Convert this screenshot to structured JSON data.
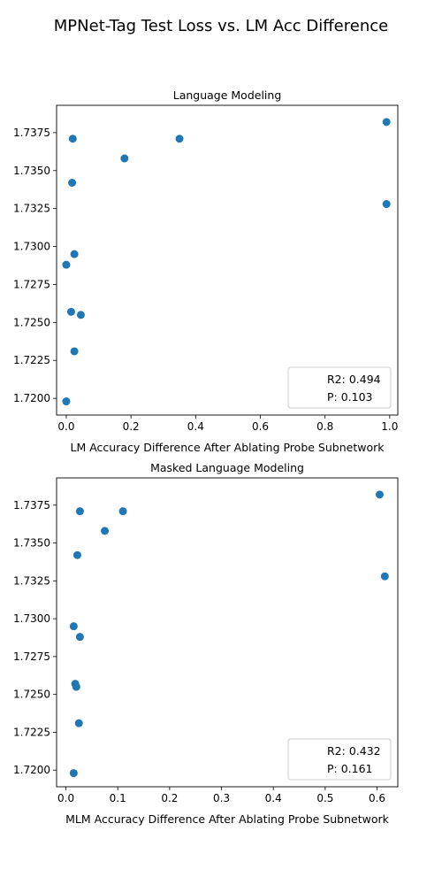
{
  "figure": {
    "suptitle": "MPNet-Tag Test Loss vs. LM Acc Difference"
  },
  "chart_data": [
    {
      "type": "scatter",
      "title": "Language Modeling",
      "xlabel": "LM Accuracy Difference After Ablating Probe Subnetwork",
      "ylabel": "",
      "xlim": [
        -0.03,
        1.025
      ],
      "ylim": [
        1.7189,
        1.7393
      ],
      "xticks": [
        0.0,
        0.2,
        0.4,
        0.6,
        0.8,
        1.0
      ],
      "xtick_labels": [
        "0.0",
        "0.2",
        "0.4",
        "0.6",
        "0.8",
        "1.0"
      ],
      "yticks": [
        1.72,
        1.7225,
        1.725,
        1.7275,
        1.73,
        1.7325,
        1.735,
        1.7375
      ],
      "ytick_labels": [
        "1.7200",
        "1.7225",
        "1.7250",
        "1.7275",
        "1.7300",
        "1.7325",
        "1.7350",
        "1.7375"
      ],
      "grid": false,
      "legend_position": "lower right",
      "legend": [
        "R2: 0.494",
        "P: 0.103"
      ],
      "marker_color": "#1f77b4",
      "points": [
        {
          "x": 0.0,
          "y": 1.7198
        },
        {
          "x": 0.0,
          "y": 1.7288
        },
        {
          "x": 0.015,
          "y": 1.7257
        },
        {
          "x": 0.018,
          "y": 1.7342
        },
        {
          "x": 0.02,
          "y": 1.7371
        },
        {
          "x": 0.025,
          "y": 1.7295
        },
        {
          "x": 0.025,
          "y": 1.7231
        },
        {
          "x": 0.045,
          "y": 1.7255
        },
        {
          "x": 0.18,
          "y": 1.7358
        },
        {
          "x": 0.35,
          "y": 1.7371
        },
        {
          "x": 0.99,
          "y": 1.7328
        },
        {
          "x": 0.99,
          "y": 1.7382
        }
      ]
    },
    {
      "type": "scatter",
      "title": "Masked Language Modeling",
      "xlabel": "MLM Accuracy Difference After Ablating Probe Subnetwork",
      "ylabel": "",
      "xlim": [
        -0.018,
        0.64
      ],
      "ylim": [
        1.7189,
        1.7393
      ],
      "xticks": [
        0.0,
        0.1,
        0.2,
        0.3,
        0.4,
        0.5,
        0.6
      ],
      "xtick_labels": [
        "0.0",
        "0.1",
        "0.2",
        "0.3",
        "0.4",
        "0.5",
        "0.6"
      ],
      "yticks": [
        1.72,
        1.7225,
        1.725,
        1.7275,
        1.73,
        1.7325,
        1.735,
        1.7375
      ],
      "ytick_labels": [
        "1.7200",
        "1.7225",
        "1.7250",
        "1.7275",
        "1.7300",
        "1.7325",
        "1.7350",
        "1.7375"
      ],
      "grid": false,
      "legend_position": "lower right",
      "legend": [
        "R2: 0.432",
        "P: 0.161"
      ],
      "marker_color": "#1f77b4",
      "points": [
        {
          "x": 0.015,
          "y": 1.7198
        },
        {
          "x": 0.015,
          "y": 1.7295
        },
        {
          "x": 0.018,
          "y": 1.7257
        },
        {
          "x": 0.02,
          "y": 1.7255
        },
        {
          "x": 0.022,
          "y": 1.7342
        },
        {
          "x": 0.025,
          "y": 1.7231
        },
        {
          "x": 0.027,
          "y": 1.7288
        },
        {
          "x": 0.027,
          "y": 1.7371
        },
        {
          "x": 0.075,
          "y": 1.7358
        },
        {
          "x": 0.11,
          "y": 1.7371
        },
        {
          "x": 0.605,
          "y": 1.7382
        },
        {
          "x": 0.615,
          "y": 1.7328
        }
      ]
    }
  ]
}
